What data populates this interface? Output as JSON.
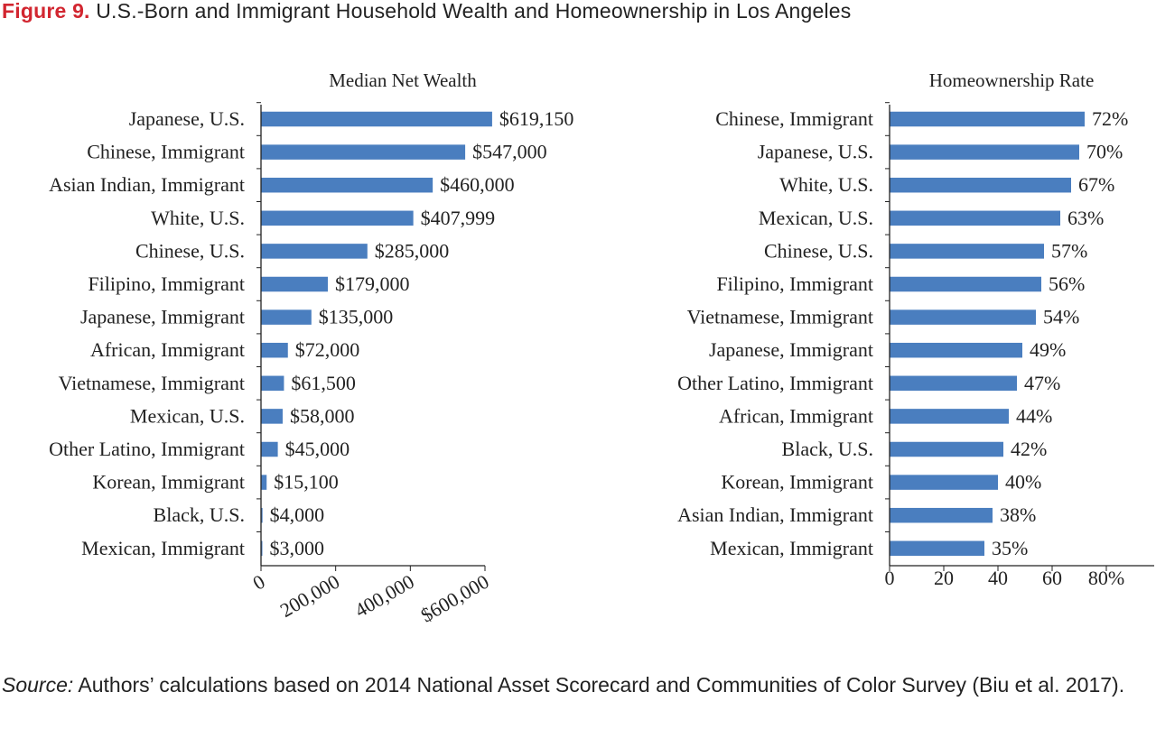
{
  "figure": {
    "label": "Figure 9.",
    "title": "U.S.-Born and Immigrant Household Wealth and Homeownership in Los Angeles"
  },
  "source": {
    "label": "Source:",
    "text": "Authors’ calculations based on 2014 National Asset Scorecard and Communities of Color Survey (Biu et al. 2017)."
  },
  "colors": {
    "bar": "#4a7ebf",
    "axis": "#222222"
  },
  "chart_data": [
    {
      "type": "bar",
      "orientation": "horizontal",
      "title": "Median Net Wealth",
      "categories": [
        "Japanese, U.S.",
        "Chinese, Immigrant",
        "Asian Indian, Immigrant",
        "White, U.S.",
        "Chinese, U.S.",
        "Filipino, Immigrant",
        "Japanese, Immigrant",
        "African, Immigrant",
        "Vietnamese, Immigrant",
        "Mexican, U.S.",
        "Other Latino, Immigrant",
        "Korean, Immigrant",
        "Black, U.S.",
        "Mexican, Immigrant"
      ],
      "values": [
        619150,
        547000,
        460000,
        407999,
        285000,
        179000,
        135000,
        72000,
        61500,
        58000,
        45000,
        15100,
        4000,
        3000
      ],
      "data_labels": [
        "$619,150",
        "$547,000",
        "$460,000",
        "$407,999",
        "$285,000",
        "$179,000",
        "$135,000",
        "$72,000",
        "$61,500",
        "$58,000",
        "$45,000",
        "$15,100",
        "$4,000",
        "$3,000"
      ],
      "xlim": [
        0,
        600000
      ],
      "ticks": [
        0,
        200000,
        400000,
        600000
      ],
      "tick_labels": [
        "0",
        "200,000",
        "400,000",
        "$600,000"
      ],
      "tick_label_rotation": -30,
      "grid": false,
      "legend": "none"
    },
    {
      "type": "bar",
      "orientation": "horizontal",
      "title": "Homeownership Rate",
      "categories": [
        "Chinese, Immigrant",
        "Japanese, U.S.",
        "White, U.S.",
        "Mexican, U.S.",
        "Chinese, U.S.",
        "Filipino, Immigrant",
        "Vietnamese, Immigrant",
        "Japanese, Immigrant",
        "Other Latino, Immigrant",
        "African, Immigrant",
        "Black, U.S.",
        "Korean, Immigrant",
        "Asian Indian, Immigrant",
        "Mexican, Immigrant"
      ],
      "values": [
        72,
        70,
        67,
        63,
        57,
        56,
        54,
        49,
        47,
        44,
        42,
        40,
        38,
        35
      ],
      "data_labels": [
        "72%",
        "70%",
        "67%",
        "63%",
        "57%",
        "56%",
        "54%",
        "49%",
        "47%",
        "44%",
        "42%",
        "40%",
        "38%",
        "35%"
      ],
      "xlim": [
        0,
        100
      ],
      "ticks": [
        0,
        20,
        40,
        60,
        80
      ],
      "tick_labels": [
        "0",
        "20",
        "40",
        "60",
        "80%"
      ],
      "tick_label_rotation": 0,
      "grid": false,
      "legend": "none"
    }
  ]
}
